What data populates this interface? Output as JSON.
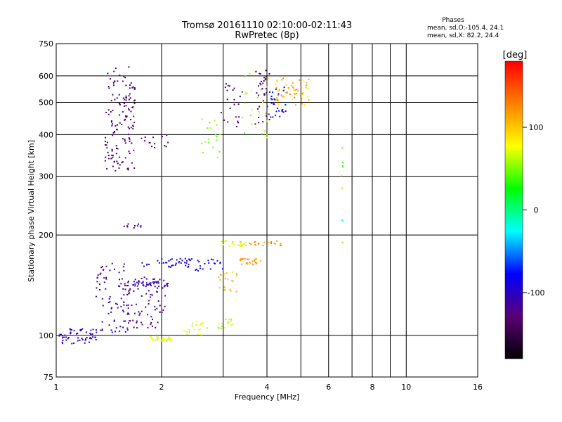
{
  "chart_data": {
    "type": "scatter",
    "title": "Tromsø 20161110 02:10:00-02:11:43",
    "subtitle": "RwPretec (8p)",
    "xlabel": "Frequency [MHz]",
    "ylabel": "Stationary phase Virtual Height [km]",
    "x_scale": "log",
    "y_scale": "log",
    "xlim": [
      1,
      16
    ],
    "ylim": [
      75,
      750
    ],
    "x_ticks": [
      1,
      2,
      4,
      6,
      8,
      10,
      16
    ],
    "y_ticks": [
      75,
      100,
      200,
      300,
      400,
      500,
      600,
      750
    ],
    "grid": true,
    "phase_info": {
      "heading": "Phases",
      "line_o": "mean, sd,O:-105.4, 24.1",
      "line_x": "mean, sd,X:  82.2, 24.4"
    },
    "colorbar": {
      "label": "[deg]",
      "min": -180,
      "max": 180,
      "ticks": [
        100,
        0,
        -100
      ],
      "colors": [
        "#000000",
        "#5a0078",
        "#0000ff",
        "#00ffff",
        "#00ff00",
        "#ffff00",
        "#ff8000",
        "#ff0000"
      ]
    },
    "clusters": [
      {
        "f": [
          1.38,
          1.68
        ],
        "h": [
          310,
          640
        ],
        "phase": [
          -150,
          -115
        ],
        "n": 140
      },
      {
        "f": [
          1.75,
          2.1
        ],
        "h": [
          360,
          400
        ],
        "phase": [
          -140,
          -110
        ],
        "n": 14
      },
      {
        "f": [
          2.6,
          2.95
        ],
        "h": [
          340,
          450
        ],
        "phase": [
          40,
          70
        ],
        "n": 18
      },
      {
        "f": [
          2.95,
          3.4
        ],
        "h": [
          420,
          580
        ],
        "phase": [
          -140,
          -105
        ],
        "n": 22
      },
      {
        "f": [
          3.4,
          4.05
        ],
        "h": [
          390,
          620
        ],
        "phase": [
          30,
          75
        ],
        "n": 30
      },
      {
        "f": [
          3.7,
          4.1
        ],
        "h": [
          430,
          650
        ],
        "phase": [
          -145,
          -115
        ],
        "n": 34
      },
      {
        "f": [
          4.1,
          4.6
        ],
        "h": [
          450,
          560
        ],
        "phase": [
          -110,
          -70
        ],
        "n": 28
      },
      {
        "f": [
          4.2,
          5.3
        ],
        "h": [
          490,
          590
        ],
        "phase": [
          80,
          135
        ],
        "n": 55
      },
      {
        "f": [
          1.02,
          1.32
        ],
        "h": [
          94,
          105
        ],
        "phase": [
          -120,
          -90
        ],
        "n": 55
      },
      {
        "f": [
          1.3,
          1.62
        ],
        "h": [
          102,
          165
        ],
        "phase": [
          -130,
          -100
        ],
        "n": 75
      },
      {
        "f": [
          1.55,
          2.05
        ],
        "h": [
          105,
          150
        ],
        "phase": [
          -145,
          -110
        ],
        "n": 85
      },
      {
        "f": [
          1.65,
          2.1
        ],
        "h": [
          140,
          145
        ],
        "phase": [
          -115,
          -95
        ],
        "n": 40
      },
      {
        "f": [
          1.75,
          2.5
        ],
        "h": [
          160,
          170
        ],
        "phase": [
          -105,
          -80
        ],
        "n": 40
      },
      {
        "f": [
          2.5,
          3.0
        ],
        "h": [
          155,
          170
        ],
        "phase": [
          -100,
          -70
        ],
        "n": 20
      },
      {
        "f": [
          1.85,
          2.15
        ],
        "h": [
          96,
          99
        ],
        "phase": [
          60,
          90
        ],
        "n": 28
      },
      {
        "f": [
          2.3,
          2.7
        ],
        "h": [
          100,
          110
        ],
        "phase": [
          55,
          90
        ],
        "n": 18
      },
      {
        "f": [
          2.9,
          3.25
        ],
        "h": [
          105,
          112
        ],
        "phase": [
          50,
          75
        ],
        "n": 16
      },
      {
        "f": [
          2.9,
          3.3
        ],
        "h": [
          135,
          155
        ],
        "phase": [
          90,
          115
        ],
        "n": 20
      },
      {
        "f": [
          2.95,
          3.5
        ],
        "h": [
          185,
          192
        ],
        "phase": [
          50,
          100
        ],
        "n": 22
      },
      {
        "f": [
          3.35,
          3.85
        ],
        "h": [
          163,
          170
        ],
        "phase": [
          105,
          130
        ],
        "n": 25
      },
      {
        "f": [
          3.5,
          4.4
        ],
        "h": [
          185,
          192
        ],
        "phase": [
          100,
          140
        ],
        "n": 18
      },
      {
        "f": [
          1.55,
          1.75
        ],
        "h": [
          210,
          216
        ],
        "phase": [
          -130,
          -110
        ],
        "n": 10
      },
      {
        "f": [
          6.5,
          6.6
        ],
        "h": [
          140,
          370
        ],
        "phase": [
          -20,
          110
        ],
        "n": 8
      }
    ]
  }
}
